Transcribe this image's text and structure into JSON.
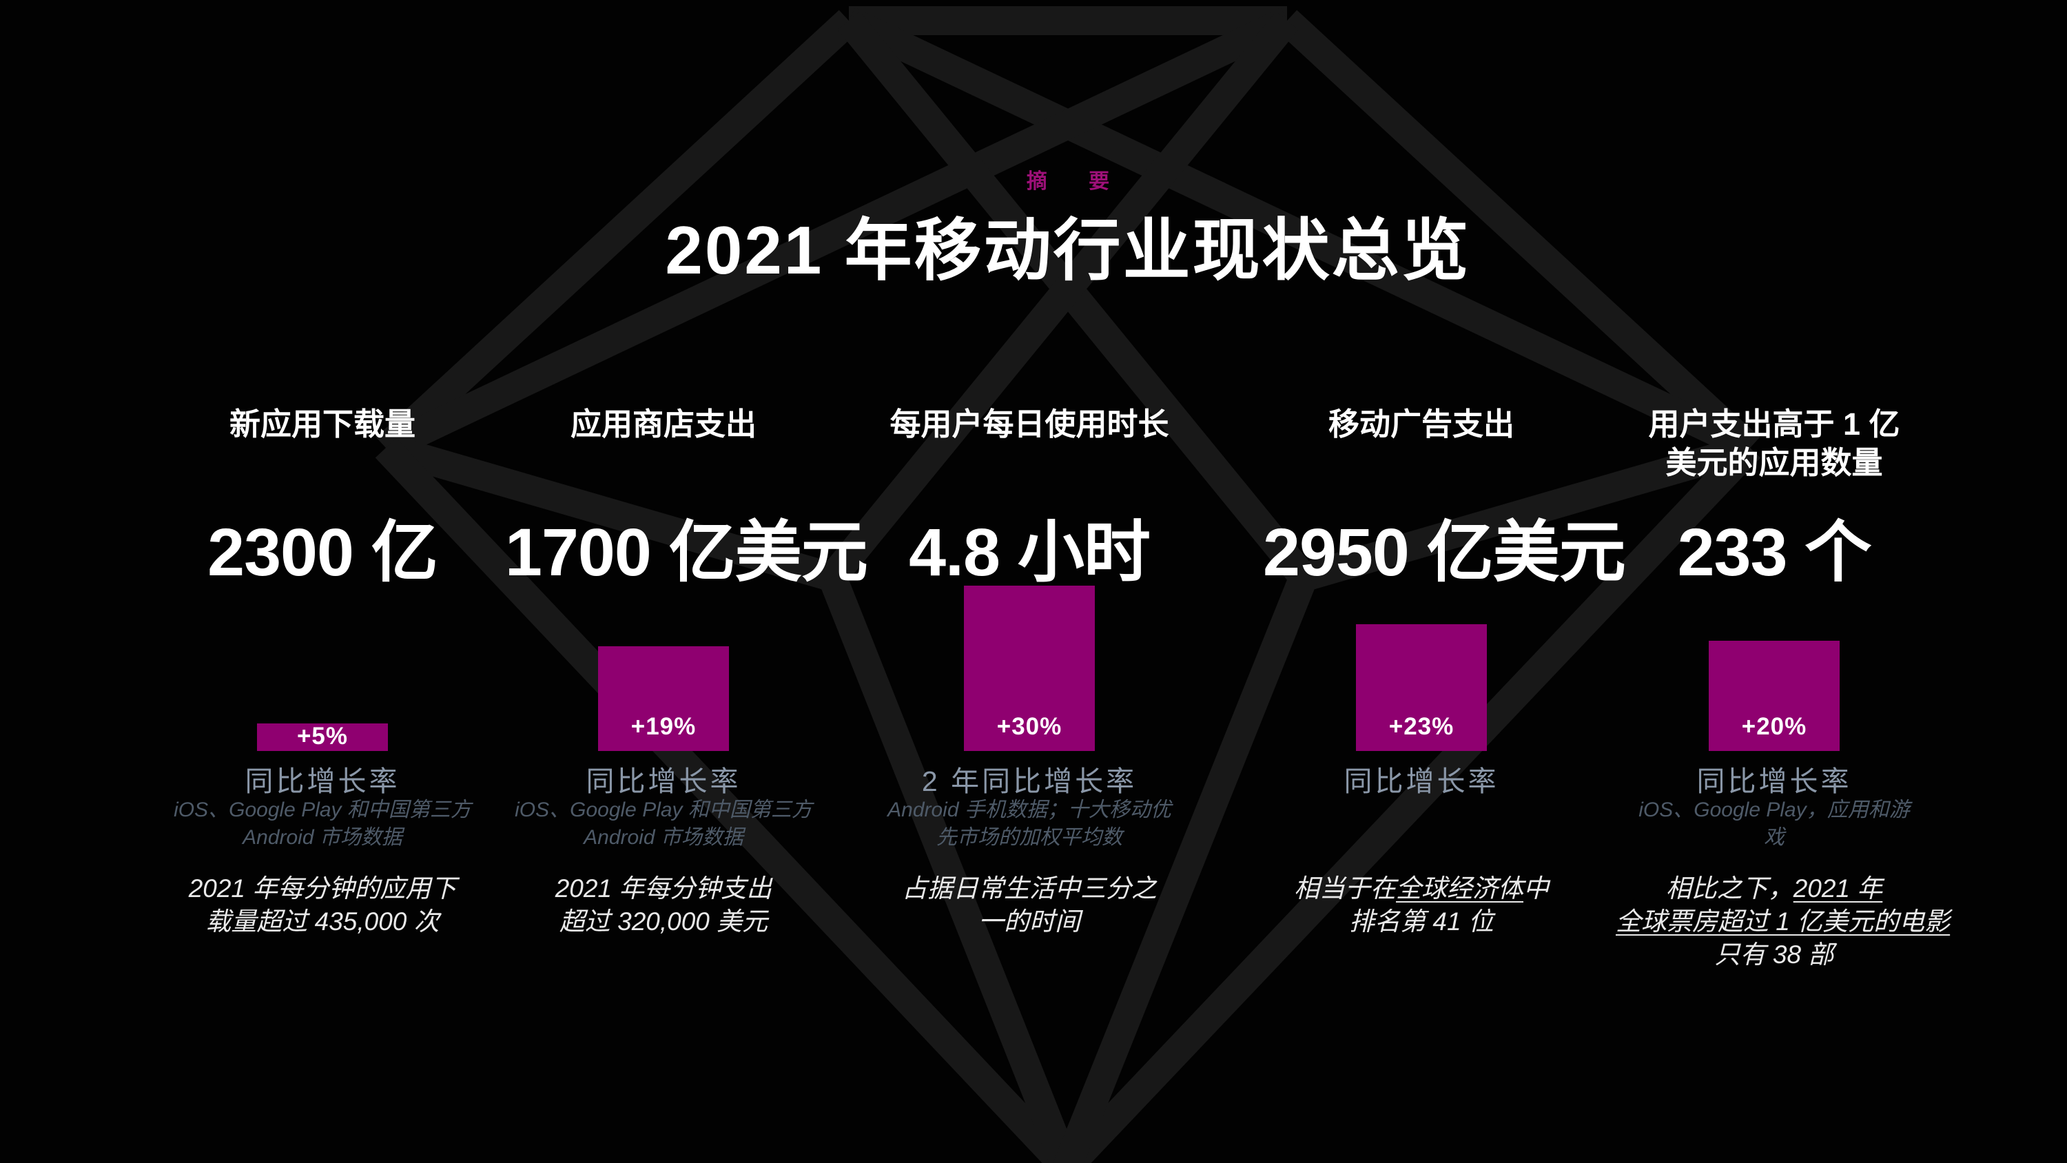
{
  "slide": {
    "eyebrow": "摘 要",
    "title": "2021 年移动行业现状总览",
    "colors": {
      "background": "#020202",
      "bar_magenta": "#8f0070",
      "eyebrow_magenta": "#9d1078",
      "growth_label_gray": "#8a97a8",
      "source_gray": "#4e5a68",
      "statement_white": "#e9e9e9",
      "gem_line_gray": "#181818"
    }
  },
  "chart_data": {
    "type": "bar",
    "title": "2021 年移动行业现状总览",
    "eyebrow": "摘 要",
    "categories": [
      "新应用下载量",
      "应用商店支出",
      "每用户每日使用时长",
      "移动广告支出",
      "用户支出高于 1 亿美元的应用数量"
    ],
    "headline_values": [
      "2300 亿",
      "1700 亿美元",
      "4.8 小时",
      "2950 亿美元",
      "233 个"
    ],
    "series": [
      {
        "name": "同比增长率 (%)",
        "values": [
          5,
          19,
          30,
          23,
          20
        ]
      }
    ],
    "bar_labels": [
      "+5%",
      "+19%",
      "+30%",
      "+23%",
      "+20%"
    ],
    "growth_period_labels": [
      "同比增长率",
      "同比增长率",
      "2 年同比增长率",
      "同比增长率",
      "同比增长率"
    ],
    "ylim": [
      0,
      30
    ],
    "grid": false,
    "legend": "none",
    "bar_color": "#8f0070",
    "notes": [
      "2021 年每分钟的应用下载量超过 435,000 次",
      "2021 年每分钟支出超过 320,000 美元",
      "占据日常生活中三分之一的时间",
      "相当于在全球经济体中排名第 41 位",
      "相比之下，2021 年全球票房超过 1 亿美元的电影只有 38 部"
    ],
    "sources": [
      "iOS、Google Play 和中国第三方 Android 市场数据",
      "iOS、Google Play 和中国第三方 Android 市场数据",
      "Android 手机数据；十大移动优先市场的加权平均数",
      "",
      "iOS、Google Play，应用和游戏"
    ]
  },
  "columns": [
    {
      "header_lines": [
        "新应用下载量"
      ],
      "value": "2300 亿",
      "bar_label": "+5%",
      "growth_pct": 5,
      "growth_label": "同比增长率",
      "source_lines": [
        "iOS、Google Play 和中国第三方",
        "Android 市场数据"
      ],
      "statement_lines": [
        [
          {
            "t": "2021 年每分钟的应用下"
          }
        ],
        [
          {
            "t": "载量超过 435,000 次"
          }
        ]
      ]
    },
    {
      "header_lines": [
        "应用商店支出"
      ],
      "value": "1700 亿美元",
      "bar_label": "+19%",
      "growth_pct": 19,
      "growth_label": "同比增长率",
      "source_lines": [
        "iOS、Google Play 和中国第三方",
        "Android 市场数据"
      ],
      "statement_lines": [
        [
          {
            "t": "2021 年每分钟支出"
          }
        ],
        [
          {
            "t": "超过 320,000 美元"
          }
        ]
      ]
    },
    {
      "header_lines": [
        "每用户每日使用时长"
      ],
      "value": "4.8 小时",
      "bar_label": "+30%",
      "growth_pct": 30,
      "growth_label": "2 年同比增长率",
      "source_lines": [
        "Android 手机数据；十大移动优",
        "先市场的加权平均数"
      ],
      "statement_lines": [
        [
          {
            "t": "占据日常生活中三分之"
          }
        ],
        [
          {
            "t": "一的时间"
          }
        ]
      ]
    },
    {
      "header_lines": [
        "移动广告支出"
      ],
      "value": "2950 亿美元",
      "bar_label": "+23%",
      "growth_pct": 23,
      "growth_label": "同比增长率",
      "source_lines": [],
      "statement_lines": [
        [
          {
            "t": "相当于在"
          },
          {
            "t": "全球经济体",
            "u": true
          },
          {
            "t": "中"
          }
        ],
        [
          {
            "t": "排名第 41 位"
          }
        ]
      ]
    },
    {
      "header_lines": [
        "用户支出高于 1 亿",
        "美元的应用数量"
      ],
      "value": "233 个",
      "bar_label": "+20%",
      "growth_pct": 20,
      "growth_label": "同比增长率",
      "source_lines": [
        "iOS、Google Play，应用和游",
        "戏"
      ],
      "statement_lines": [
        [
          {
            "t": "相比之下，"
          },
          {
            "t": "2021 年",
            "u": true
          }
        ],
        [
          {
            "t": "全球票房超过 1 亿美元的电影",
            "u": true
          }
        ],
        [
          {
            "t": "只有 38 部"
          }
        ]
      ]
    }
  ]
}
